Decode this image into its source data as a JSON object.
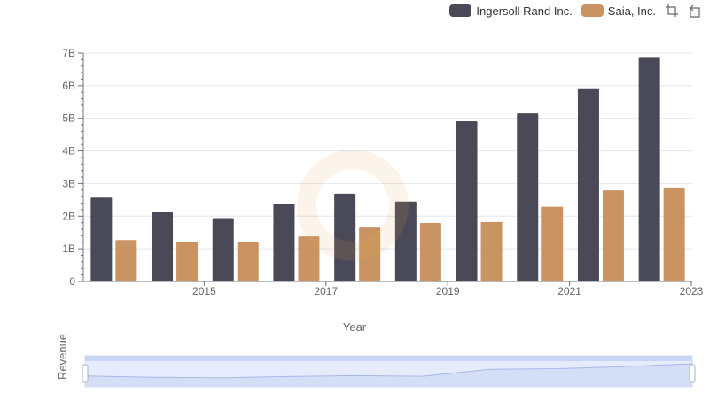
{
  "legend": {
    "items": [
      {
        "label": "Ingersoll Rand Inc.",
        "color": "#4a4957"
      },
      {
        "label": "Saia, Inc.",
        "color": "#c99461"
      }
    ],
    "tools": [
      "restore-icon",
      "zoom-reset-icon"
    ]
  },
  "chart_data": {
    "type": "bar",
    "xlabel": "Year",
    "ylabel": "Revenue",
    "ylim": [
      0,
      7000000000
    ],
    "yticks": [
      "0",
      "1B",
      "2B",
      "3B",
      "4B",
      "5B",
      "6B",
      "7B"
    ],
    "x": [
      2014,
      2015,
      2016,
      2017,
      2018,
      2019,
      2020,
      2021,
      2022,
      2023
    ],
    "xtick_labels": [
      "2015",
      "2017",
      "2019",
      "2021",
      "2023"
    ],
    "grid": true,
    "legend_position": "top-right",
    "series": [
      {
        "name": "Ingersoll Rand Inc.",
        "color": "#4a4957",
        "values": [
          2570000000,
          2120000000,
          1940000000,
          2380000000,
          2690000000,
          2450000000,
          4910000000,
          5150000000,
          5920000000,
          6880000000
        ]
      },
      {
        "name": "Saia, Inc.",
        "color": "#c99461",
        "values": [
          1270000000,
          1220000000,
          1220000000,
          1380000000,
          1650000000,
          1790000000,
          1820000000,
          2290000000,
          2790000000,
          2880000000
        ]
      }
    ]
  },
  "data_zoom": {
    "start_percent": 0,
    "end_percent": 100
  }
}
